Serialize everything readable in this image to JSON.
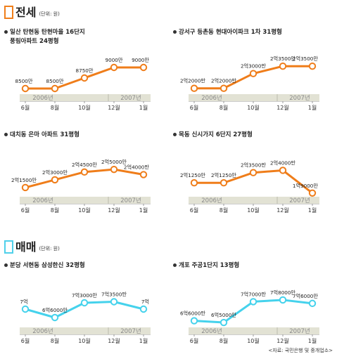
{
  "sections": [
    {
      "title": "전세",
      "unit": "(단위: 원)",
      "color": "#f07f1b"
    },
    {
      "title": "매매",
      "unit": "(단위: 원)",
      "color": "#4fd0ea"
    }
  ],
  "source": "<자료: 국민은행 및 중개업소>",
  "line_colors": {
    "jeonse": "#ef7d1a",
    "maemae": "#45d2ec",
    "fill": "#ffffff",
    "year_band": "#e2e2d4"
  },
  "chart_data": [
    {
      "type": "line",
      "title": "일산 탄현동 탄현마을 16단지 풍림아파트 24평형",
      "title_lines": [
        "일산 탄현동 탄현마을 16단지",
        "풍림아파트 24평형"
      ],
      "categories": [
        "6월",
        "8월",
        "10월",
        "12월",
        "1월"
      ],
      "values": [
        8500,
        8500,
        8750,
        9000,
        9000
      ],
      "data_labels": [
        "8500만",
        "8500만",
        "8750만",
        "9000만",
        "9000만"
      ],
      "year_labels": [
        "2006년",
        "2007년"
      ],
      "ylim": [
        8400,
        9100
      ]
    },
    {
      "type": "line",
      "title": "강서구 등촌동 현대아이파크 1차 31평형",
      "title_lines": [
        "강서구 등촌동 현대아이파크 1차 31평형"
      ],
      "categories": [
        "6월",
        "8월",
        "10월",
        "12월",
        "1월"
      ],
      "values": [
        22000,
        22000,
        23000,
        23500,
        23500
      ],
      "data_labels": [
        "2억2000만",
        "2억2000만",
        "2억3000만",
        "2억3500만",
        "2억3500만"
      ],
      "year_labels": [
        "2006년",
        "2007년"
      ],
      "ylim": [
        21700,
        23700
      ]
    },
    {
      "type": "line",
      "title": "대치동 은마 아파트 31평형",
      "title_lines": [
        "대치동 은마 아파트 31평형"
      ],
      "categories": [
        "6월",
        "8월",
        "10월",
        "12월",
        "1월"
      ],
      "values": [
        21500,
        23000,
        24500,
        25000,
        24000
      ],
      "data_labels": [
        "2억1500만",
        "2억3000만",
        "2억4500만",
        "2억5000만",
        "2억4000만"
      ],
      "year_labels": [
        "2006년",
        "2007년"
      ],
      "ylim": [
        20000,
        25700
      ]
    },
    {
      "type": "line",
      "title": "목동 신시가지 6단지 27평형",
      "title_lines": [
        "목동 신시가지 6단지 27평형"
      ],
      "categories": [
        "6월",
        "8월",
        "10월",
        "12월",
        "1월"
      ],
      "values": [
        21250,
        21250,
        23500,
        24000,
        19000
      ],
      "data_labels": [
        "2억1250만",
        "2억1250만",
        "2억3500만",
        "2억4000만",
        "1억9000만"
      ],
      "year_labels": [
        "2006년",
        "2007년"
      ],
      "ylim": [
        18500,
        25000
      ]
    },
    {
      "type": "line",
      "title": "분당 서현동 삼성한신 32평형",
      "title_lines": [
        "분당 서현동 삼성한신 32평형"
      ],
      "categories": [
        "6월",
        "8월",
        "10월",
        "12월",
        "1월"
      ],
      "values": [
        70000,
        66000,
        73000,
        73500,
        70000
      ],
      "data_labels": [
        "7억",
        "6억6000만",
        "7억3000만",
        "7억3500만",
        "7억"
      ],
      "year_labels": [
        "2006년",
        "2007년"
      ],
      "ylim": [
        62000,
        76000
      ]
    },
    {
      "type": "line",
      "title": "개포 주공1단지 13평형",
      "title_lines": [
        "개포 주공1단지 13평형"
      ],
      "categories": [
        "6월",
        "8월",
        "10월",
        "12월",
        "1월"
      ],
      "values": [
        66000,
        65000,
        77000,
        78000,
        76000
      ],
      "data_labels": [
        "6억6000만",
        "6억5000만",
        "7억7000만",
        "7억8000만",
        "7억6000만"
      ],
      "year_labels": [
        "2006년",
        "2007년"
      ],
      "ylim": [
        63000,
        80000
      ]
    }
  ]
}
